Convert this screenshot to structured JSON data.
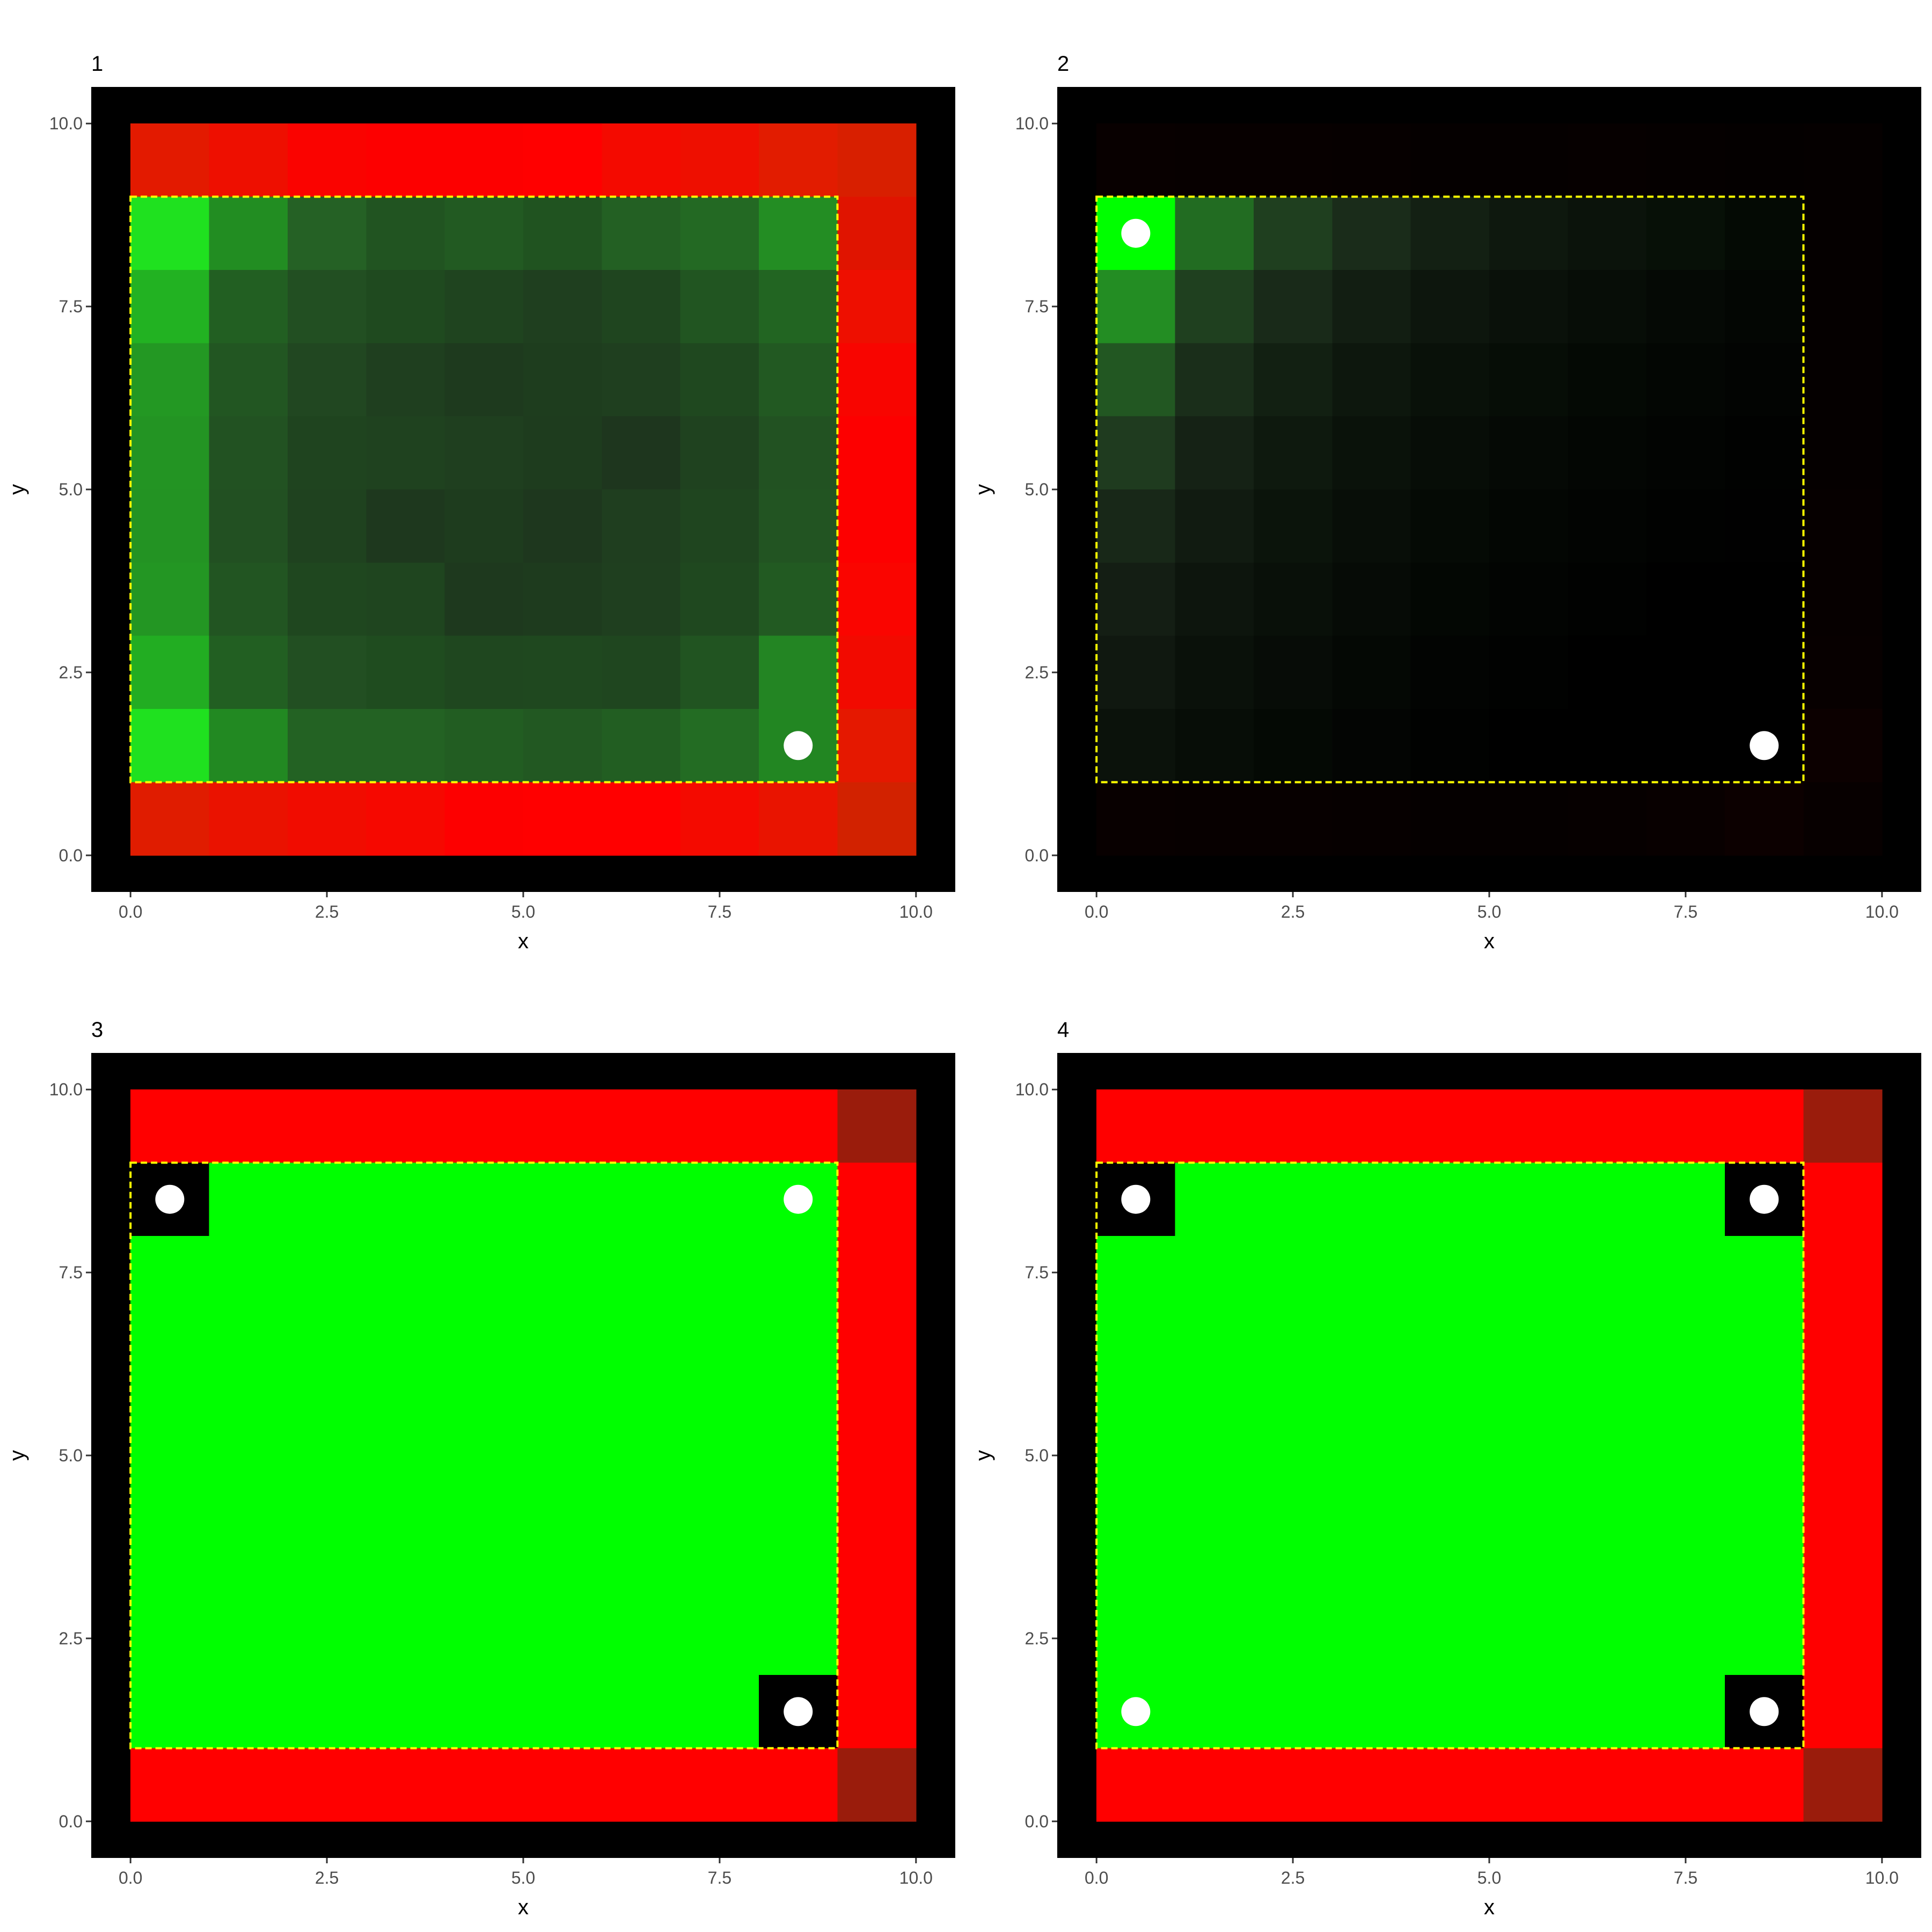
{
  "chart_data": [
    {
      "type": "heatmap",
      "title": "1",
      "xlabel": "x",
      "ylabel": "y",
      "xlim": [
        -0.5,
        10.5
      ],
      "ylim": [
        -0.5,
        10.5
      ],
      "x_ticks": [
        "0.0",
        "2.5",
        "5.0",
        "7.5",
        "10.0"
      ],
      "y_ticks": [
        "0.0",
        "2.5",
        "5.0",
        "7.5",
        "10.0"
      ],
      "grid": false,
      "panel_background": "#000000",
      "cell_size": 1,
      "rows": [
        [
          "#e31a00",
          "#ee0f00",
          "#fa0300",
          "#fd0000",
          "#fd0000",
          "#ff0000",
          "#f40a00",
          "#ee0f00",
          "#e21c00",
          "#d81f00"
        ],
        [
          "#1fe11f",
          "#228d22",
          "#256125",
          "#215421",
          "#225a22",
          "#205320",
          "#236023",
          "#236923",
          "#238d23",
          "#e01400"
        ],
        [
          "#22b222",
          "#225f22",
          "#224f22",
          "#1f4a1f",
          "#1f441f",
          "#1f3f1f",
          "#1f451f",
          "#215521",
          "#226522",
          "#ee0f00"
        ],
        [
          "#239823",
          "#225622",
          "#214721",
          "#1f3f1f",
          "#1e3a1e",
          "#1e3d1e",
          "#1f3f1f",
          "#1f481f",
          "#225922",
          "#f80500"
        ],
        [
          "#239423",
          "#225222",
          "#1f441f",
          "#1f421f",
          "#1f3f1f",
          "#1e3c1e",
          "#1e361e",
          "#1f421f",
          "#225222",
          "#fd0000"
        ],
        [
          "#239323",
          "#225022",
          "#1f421f",
          "#1e381e",
          "#1e3c1e",
          "#1e371e",
          "#1f3e1f",
          "#1f451f",
          "#225422",
          "#fd0000"
        ],
        [
          "#239623",
          "#225522",
          "#1f471f",
          "#1f451f",
          "#1e391e",
          "#1e3b1e",
          "#1f3f1f",
          "#1f481f",
          "#225a22",
          "#fa0500"
        ],
        [
          "#22ad22",
          "#225f22",
          "#224f22",
          "#1f4c1f",
          "#1f471f",
          "#1f481f",
          "#1f461f",
          "#215421",
          "#238523",
          "#f20a00"
        ],
        [
          "#1fe11f",
          "#228922",
          "#236223",
          "#236223",
          "#225d22",
          "#225822",
          "#225e22",
          "#236c23",
          "#228622",
          "#e51800"
        ],
        [
          "#e01c00",
          "#ea1200",
          "#f10c00",
          "#f60800",
          "#fd0000",
          "#ff0000",
          "#ff0000",
          "#f40a00",
          "#e91400",
          "#d22200"
        ]
      ],
      "highlight_region": {
        "x": [
          0,
          9
        ],
        "y": [
          1,
          9
        ],
        "line": "dashed",
        "color": "#ffff00"
      },
      "markers": [
        {
          "x": 8.5,
          "y": 1.5,
          "color": "#ffffff"
        }
      ]
    },
    {
      "type": "heatmap",
      "title": "2",
      "xlabel": "x",
      "ylabel": "y",
      "xlim": [
        -0.5,
        10.5
      ],
      "ylim": [
        -0.5,
        10.5
      ],
      "x_ticks": [
        "0.0",
        "2.5",
        "5.0",
        "7.5",
        "10.0"
      ],
      "y_ticks": [
        "0.0",
        "2.5",
        "5.0",
        "7.5",
        "10.0"
      ],
      "grid": false,
      "panel_background": "#000000",
      "cell_size": 1,
      "rows": [
        [
          "#080000",
          "#070000",
          "#070000",
          "#060000",
          "#050000",
          "#050000",
          "#060000",
          "#050000",
          "#040000",
          "#050000"
        ],
        [
          "#00ff00",
          "#226c22",
          "#1f3f1f",
          "#1a2c1a",
          "#132013",
          "#0e180e",
          "#0b130b",
          "#071007",
          "#040a04",
          "#050000"
        ],
        [
          "#238d23",
          "#1f401f",
          "#192a19",
          "#121e12",
          "#0d160d",
          "#0a110a",
          "#070d07",
          "#050905",
          "#030603",
          "#050000"
        ],
        [
          "#225722",
          "#1a2e1a",
          "#122012",
          "#0d170d",
          "#091109",
          "#060d06",
          "#040904",
          "#030603",
          "#020402",
          "#050000"
        ],
        [
          "#1f3b1f",
          "#152215",
          "#0e190e",
          "#0a120a",
          "#070d07",
          "#050905",
          "#030603",
          "#020402",
          "#010201",
          "#050000"
        ],
        [
          "#182818",
          "#111b11",
          "#0b140b",
          "#080e08",
          "#050a05",
          "#030603",
          "#020402",
          "#010201",
          "#010101",
          "#060000"
        ],
        [
          "#141e14",
          "#0d150d",
          "#091009",
          "#060b06",
          "#030703",
          "#020402",
          "#010201",
          "#000000",
          "#000000",
          "#060000"
        ],
        [
          "#101810",
          "#0a110a",
          "#070c07",
          "#040804",
          "#020402",
          "#010201",
          "#000000",
          "#000000",
          "#000000",
          "#070000"
        ],
        [
          "#0b120b",
          "#070d07",
          "#040904",
          "#030503",
          "#010201",
          "#000000",
          "#000000",
          "#000000",
          "#000000",
          "#0c0000"
        ],
        [
          "#080000",
          "#070000",
          "#070000",
          "#060000",
          "#050000",
          "#050000",
          "#060000",
          "#080000",
          "#0c0000",
          "#070000"
        ]
      ],
      "highlight_region": {
        "x": [
          0,
          9
        ],
        "y": [
          1,
          9
        ],
        "line": "dashed",
        "color": "#ffff00"
      },
      "markers": [
        {
          "x": 0.5,
          "y": 8.5,
          "color": "#ffffff"
        },
        {
          "x": 8.5,
          "y": 1.5,
          "color": "#ffffff"
        }
      ]
    },
    {
      "type": "heatmap",
      "title": "3",
      "xlabel": "x",
      "ylabel": "y",
      "xlim": [
        -0.5,
        10.5
      ],
      "ylim": [
        -0.5,
        10.5
      ],
      "x_ticks": [
        "0.0",
        "2.5",
        "5.0",
        "7.5",
        "10.0"
      ],
      "y_ticks": [
        "0.0",
        "2.5",
        "5.0",
        "7.5",
        "10.0"
      ],
      "grid": false,
      "panel_background": "#000000",
      "cell_size": 1,
      "rows": [
        [
          "#ff0000",
          "#ff0000",
          "#ff0000",
          "#ff0000",
          "#ff0000",
          "#ff0000",
          "#ff0000",
          "#ff0000",
          "#ff0000",
          "#9a1c0c"
        ],
        [
          "#000000",
          "#00ff00",
          "#00ff00",
          "#00ff00",
          "#00ff00",
          "#00ff00",
          "#00ff00",
          "#00ff00",
          "#00ff00",
          "#ff0000"
        ],
        [
          "#00ff00",
          "#00ff00",
          "#00ff00",
          "#00ff00",
          "#00ff00",
          "#00ff00",
          "#00ff00",
          "#00ff00",
          "#00ff00",
          "#ff0000"
        ],
        [
          "#00ff00",
          "#00ff00",
          "#00ff00",
          "#00ff00",
          "#00ff00",
          "#00ff00",
          "#00ff00",
          "#00ff00",
          "#00ff00",
          "#ff0000"
        ],
        [
          "#00ff00",
          "#00ff00",
          "#00ff00",
          "#00ff00",
          "#00ff00",
          "#00ff00",
          "#00ff00",
          "#00ff00",
          "#00ff00",
          "#ff0000"
        ],
        [
          "#00ff00",
          "#00ff00",
          "#00ff00",
          "#00ff00",
          "#00ff00",
          "#00ff00",
          "#00ff00",
          "#00ff00",
          "#00ff00",
          "#ff0000"
        ],
        [
          "#00ff00",
          "#00ff00",
          "#00ff00",
          "#00ff00",
          "#00ff00",
          "#00ff00",
          "#00ff00",
          "#00ff00",
          "#00ff00",
          "#ff0000"
        ],
        [
          "#00ff00",
          "#00ff00",
          "#00ff00",
          "#00ff00",
          "#00ff00",
          "#00ff00",
          "#00ff00",
          "#00ff00",
          "#00ff00",
          "#ff0000"
        ],
        [
          "#00ff00",
          "#00ff00",
          "#00ff00",
          "#00ff00",
          "#00ff00",
          "#00ff00",
          "#00ff00",
          "#00ff00",
          "#000000",
          "#ff0000"
        ],
        [
          "#ff0000",
          "#ff0000",
          "#ff0000",
          "#ff0000",
          "#ff0000",
          "#ff0000",
          "#ff0000",
          "#ff0000",
          "#ff0000",
          "#9a1c0c"
        ]
      ],
      "highlight_region": {
        "x": [
          0,
          9
        ],
        "y": [
          1,
          9
        ],
        "line": "dashed",
        "color": "#ffff00"
      },
      "markers": [
        {
          "x": 0.5,
          "y": 8.5,
          "color": "#ffffff"
        },
        {
          "x": 8.5,
          "y": 8.5,
          "color": "#ffffff"
        },
        {
          "x": 8.5,
          "y": 1.5,
          "color": "#ffffff"
        }
      ]
    },
    {
      "type": "heatmap",
      "title": "4",
      "xlabel": "x",
      "ylabel": "y",
      "xlim": [
        -0.5,
        10.5
      ],
      "ylim": [
        -0.5,
        10.5
      ],
      "x_ticks": [
        "0.0",
        "2.5",
        "5.0",
        "7.5",
        "10.0"
      ],
      "y_ticks": [
        "0.0",
        "2.5",
        "5.0",
        "7.5",
        "10.0"
      ],
      "grid": false,
      "panel_background": "#000000",
      "cell_size": 1,
      "rows": [
        [
          "#ff0000",
          "#ff0000",
          "#ff0000",
          "#ff0000",
          "#ff0000",
          "#ff0000",
          "#ff0000",
          "#ff0000",
          "#ff0000",
          "#9a1c0c"
        ],
        [
          "#000000",
          "#00ff00",
          "#00ff00",
          "#00ff00",
          "#00ff00",
          "#00ff00",
          "#00ff00",
          "#00ff00",
          "#000000",
          "#ff0000"
        ],
        [
          "#00ff00",
          "#00ff00",
          "#00ff00",
          "#00ff00",
          "#00ff00",
          "#00ff00",
          "#00ff00",
          "#00ff00",
          "#00ff00",
          "#ff0000"
        ],
        [
          "#00ff00",
          "#00ff00",
          "#00ff00",
          "#00ff00",
          "#00ff00",
          "#00ff00",
          "#00ff00",
          "#00ff00",
          "#00ff00",
          "#ff0000"
        ],
        [
          "#00ff00",
          "#00ff00",
          "#00ff00",
          "#00ff00",
          "#00ff00",
          "#00ff00",
          "#00ff00",
          "#00ff00",
          "#00ff00",
          "#ff0000"
        ],
        [
          "#00ff00",
          "#00ff00",
          "#00ff00",
          "#00ff00",
          "#00ff00",
          "#00ff00",
          "#00ff00",
          "#00ff00",
          "#00ff00",
          "#ff0000"
        ],
        [
          "#00ff00",
          "#00ff00",
          "#00ff00",
          "#00ff00",
          "#00ff00",
          "#00ff00",
          "#00ff00",
          "#00ff00",
          "#00ff00",
          "#ff0000"
        ],
        [
          "#00ff00",
          "#00ff00",
          "#00ff00",
          "#00ff00",
          "#00ff00",
          "#00ff00",
          "#00ff00",
          "#00ff00",
          "#00ff00",
          "#ff0000"
        ],
        [
          "#00ff00",
          "#00ff00",
          "#00ff00",
          "#00ff00",
          "#00ff00",
          "#00ff00",
          "#00ff00",
          "#00ff00",
          "#000000",
          "#ff0000"
        ],
        [
          "#ff0000",
          "#ff0000",
          "#ff0000",
          "#ff0000",
          "#ff0000",
          "#ff0000",
          "#ff0000",
          "#ff0000",
          "#ff0000",
          "#9a1c0c"
        ]
      ],
      "highlight_region": {
        "x": [
          0,
          9
        ],
        "y": [
          1,
          9
        ],
        "line": "dashed",
        "color": "#ffff00"
      },
      "markers": [
        {
          "x": 0.5,
          "y": 8.5,
          "color": "#ffffff"
        },
        {
          "x": 8.5,
          "y": 8.5,
          "color": "#ffffff"
        },
        {
          "x": 0.5,
          "y": 1.5,
          "color": "#ffffff"
        },
        {
          "x": 8.5,
          "y": 1.5,
          "color": "#ffffff"
        }
      ]
    }
  ]
}
